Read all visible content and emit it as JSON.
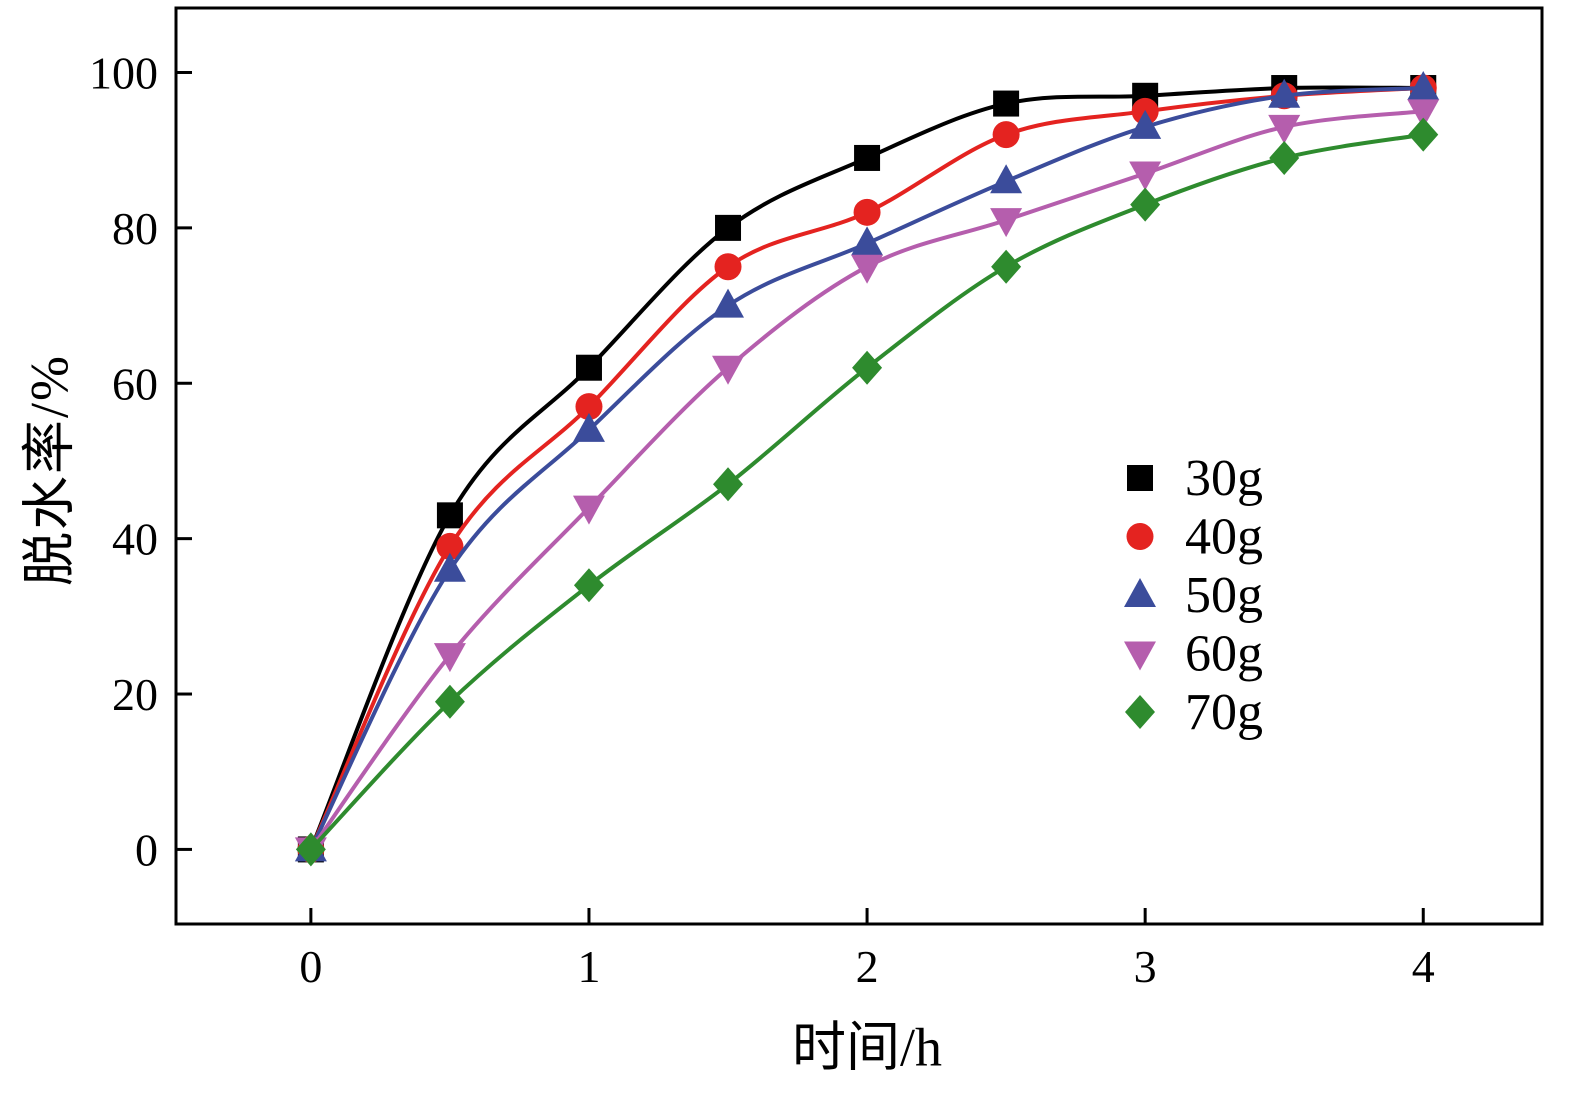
{
  "chart_data": {
    "type": "line",
    "title": "",
    "xlabel": "时间/h",
    "ylabel": "脱水率/%",
    "x": [
      0,
      0.5,
      1,
      1.5,
      2,
      2.5,
      3,
      3.5,
      4
    ],
    "series": [
      {
        "name": "30g",
        "color": "#000000",
        "marker": "square",
        "values": [
          0,
          43,
          62,
          80,
          89,
          96,
          97,
          98,
          98
        ]
      },
      {
        "name": "40g",
        "color": "#e42320",
        "marker": "circle",
        "values": [
          0,
          39,
          57,
          75,
          82,
          92,
          95,
          97,
          98
        ]
      },
      {
        "name": "50g",
        "color": "#3b4c9b",
        "marker": "triangle-up",
        "values": [
          0,
          36,
          54,
          70,
          78,
          86,
          93,
          97,
          98
        ]
      },
      {
        "name": "60g",
        "color": "#b55ead",
        "marker": "triangle-down",
        "values": [
          0,
          25,
          44,
          62,
          75,
          81,
          87,
          93,
          95
        ]
      },
      {
        "name": "70g",
        "color": "#2e8b2e",
        "marker": "diamond",
        "values": [
          0,
          19,
          34,
          47,
          62,
          75,
          83,
          89,
          92
        ]
      }
    ],
    "xlim": [
      -0.485,
      4.427
    ],
    "ylim": [
      -9.6,
      108.3
    ],
    "xticks": [
      0,
      1,
      2,
      3,
      4
    ],
    "xtick_labels": [
      "0",
      "1",
      "2",
      "3",
      "4"
    ],
    "yticks": [
      0,
      20,
      40,
      60,
      80,
      100
    ],
    "ytick_labels": [
      "0",
      "20",
      "40",
      "60",
      "80",
      "100"
    ],
    "grid": false,
    "legend_position": "center-right",
    "frame_color": "#000000",
    "background": "#ffffff"
  }
}
